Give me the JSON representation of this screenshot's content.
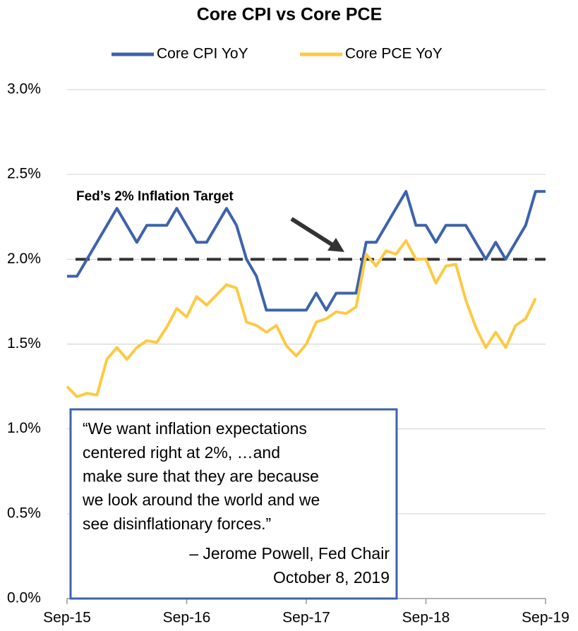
{
  "chart_data": {
    "type": "line",
    "title": "Core CPI vs Core PCE",
    "categories": [
      "Sep-15",
      null,
      null,
      null,
      null,
      null,
      null,
      null,
      null,
      null,
      null,
      null,
      "Sep-16",
      null,
      null,
      null,
      null,
      null,
      null,
      null,
      null,
      null,
      null,
      null,
      "Sep-17",
      null,
      null,
      null,
      null,
      null,
      null,
      null,
      null,
      null,
      null,
      null,
      "Sep-18",
      null,
      null,
      null,
      null,
      null,
      null,
      null,
      null,
      null,
      null,
      null,
      "Sep-19"
    ],
    "series": [
      {
        "name": "Core CPI YoY",
        "color": "#3d63ad",
        "values": [
          1.9,
          1.9,
          2.0,
          2.1,
          2.2,
          2.3,
          2.2,
          2.1,
          2.2,
          2.2,
          2.2,
          2.3,
          2.2,
          2.1,
          2.1,
          2.2,
          2.3,
          2.2,
          2.0,
          1.9,
          1.7,
          1.7,
          1.7,
          1.7,
          1.7,
          1.8,
          1.7,
          1.8,
          1.8,
          1.8,
          2.1,
          2.1,
          2.2,
          2.3,
          2.4,
          2.2,
          2.2,
          2.1,
          2.2,
          2.2,
          2.2,
          2.1,
          2.0,
          2.1,
          2.0,
          2.1,
          2.2,
          2.4,
          2.4
        ]
      },
      {
        "name": "Core PCE YoY",
        "color": "#fdc944",
        "values": [
          1.25,
          1.19,
          1.21,
          1.2,
          1.41,
          1.48,
          1.41,
          1.48,
          1.52,
          1.51,
          1.6,
          1.71,
          1.66,
          1.78,
          1.73,
          1.79,
          1.85,
          1.83,
          1.63,
          1.61,
          1.57,
          1.61,
          1.49,
          1.43,
          1.5,
          1.63,
          1.65,
          1.69,
          1.68,
          1.72,
          2.03,
          1.96,
          2.05,
          2.03,
          2.11,
          2.0,
          2.0,
          1.86,
          1.96,
          1.97,
          1.76,
          1.6,
          1.48,
          1.57,
          1.48,
          1.61,
          1.65,
          1.77,
          null
        ]
      }
    ],
    "ylim": [
      0,
      3
    ],
    "yticks": [
      {
        "value": 0,
        "label": "0.0%"
      },
      {
        "value": 0.5,
        "label": "0.5%"
      },
      {
        "value": 1,
        "label": "1.0%"
      },
      {
        "value": 1.5,
        "label": "1.5%"
      },
      {
        "value": 2,
        "label": "2.0%"
      },
      {
        "value": 2.5,
        "label": "2.5%"
      },
      {
        "value": 3,
        "label": "3.0%"
      }
    ],
    "grid": true,
    "legend": "top",
    "target": {
      "value": 2,
      "label": "Fed’s 2% Inflation Target",
      "color": "#333333"
    },
    "quote": {
      "lines": [
        "“We want inflation expectations",
        "centered right at 2%, …and",
        "make sure that they are because",
        "we look around the world and we",
        "see disinflationary forces.”"
      ],
      "attribution": [
        "– Jerome Powell, Fed Chair",
        "October 8, 2019"
      ],
      "color": "#3d63ad"
    }
  }
}
